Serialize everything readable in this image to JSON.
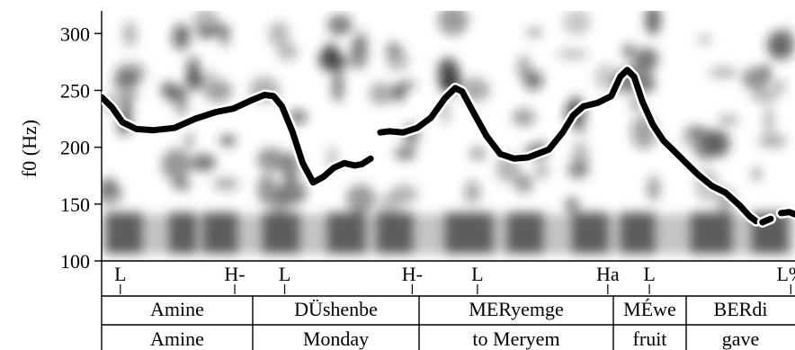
{
  "chart_data": {
    "type": "line",
    "ylabel": "f0 (Hz)",
    "ylim": [
      100,
      320
    ],
    "yticks": [
      100,
      150,
      200,
      250,
      300
    ],
    "grid": false,
    "x_extent": [
      0,
      100
    ],
    "series": [
      {
        "segments": [
          [
            [
              0.0,
              244
            ],
            [
              1.5,
              235
            ],
            [
              3.0,
              222
            ],
            [
              5.0,
              216
            ],
            [
              7.5,
              215
            ],
            [
              10.5,
              217
            ],
            [
              13.5,
              225
            ],
            [
              16.5,
              231
            ],
            [
              19.0,
              234
            ],
            [
              21.5,
              241
            ],
            [
              23.5,
              246
            ],
            [
              24.8,
              245
            ],
            [
              26.0,
              236
            ],
            [
              27.5,
              214
            ],
            [
              29.0,
              186
            ],
            [
              30.5,
              169
            ],
            [
              32.0,
              174
            ],
            [
              33.5,
              182
            ],
            [
              35.0,
              186
            ],
            [
              36.5,
              184
            ],
            [
              37.5,
              185
            ],
            [
              38.8,
              190
            ]
          ],
          [
            [
              40.2,
              213
            ],
            [
              41.5,
              214
            ],
            [
              43.5,
              213
            ],
            [
              45.5,
              217
            ],
            [
              47.5,
              226
            ],
            [
              49.5,
              243
            ],
            [
              51.0,
              252
            ],
            [
              52.0,
              249
            ],
            [
              53.5,
              232
            ],
            [
              55.5,
              210
            ],
            [
              57.5,
              194
            ],
            [
              59.5,
              190
            ],
            [
              61.5,
              191
            ],
            [
              64.5,
              198
            ],
            [
              66.5,
              213
            ],
            [
              68.0,
              228
            ],
            [
              69.5,
              236
            ],
            [
              71.5,
              239
            ],
            [
              73.5,
              245
            ],
            [
              74.8,
              262
            ],
            [
              75.8,
              268
            ],
            [
              76.8,
              262
            ],
            [
              78.0,
              240
            ],
            [
              79.5,
              220
            ],
            [
              81.0,
              206
            ],
            [
              82.5,
              197
            ],
            [
              84.0,
              188
            ],
            [
              86.0,
              176
            ],
            [
              88.0,
              166
            ],
            [
              90.0,
              160
            ],
            [
              92.0,
              149
            ],
            [
              93.5,
              139
            ],
            [
              94.4,
              135
            ]
          ],
          [
            [
              95.3,
              134
            ],
            [
              96.5,
              137
            ]
          ],
          [
            [
              98.0,
              142
            ],
            [
              99.2,
              143
            ],
            [
              100.0,
              141
            ]
          ]
        ]
      }
    ]
  },
  "tiers": [
    {
      "name": "tones",
      "labels": [
        {
          "text": "L",
          "pos": 2.7
        },
        {
          "text": "H-",
          "pos": 19.2
        },
        {
          "text": "L",
          "pos": 26.4
        },
        {
          "text": "H-",
          "pos": 44.8
        },
        {
          "text": "L",
          "pos": 54.2
        },
        {
          "text": "Ha",
          "pos": 73.0
        },
        {
          "text": "L",
          "pos": 79.0
        },
        {
          "text": "L%",
          "pos": 99.4
        }
      ]
    },
    {
      "name": "words",
      "cells": [
        "Amine",
        "DÜshenbe",
        "MERyemge",
        "MÉwe",
        "BERdi"
      ]
    },
    {
      "name": "glosses",
      "cells": [
        "Amine",
        "Monday",
        "to Meryem",
        "fruit",
        "gave"
      ]
    }
  ]
}
